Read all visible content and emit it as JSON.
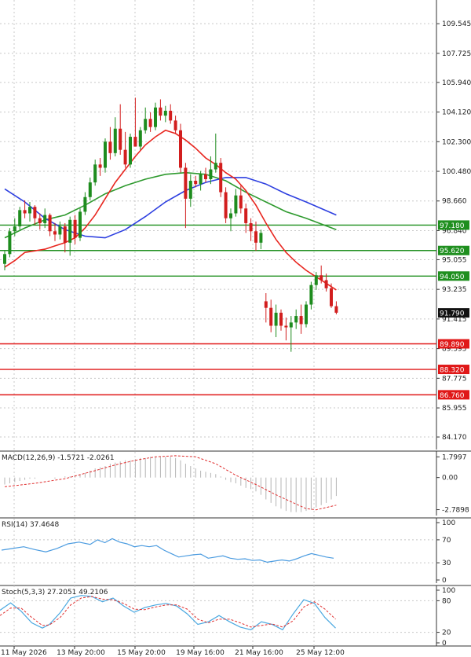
{
  "header_text": "",
  "colors": {
    "bull": "#1e8c1e",
    "bear": "#d21e1e",
    "ma_red": "#e8261f",
    "ma_green": "#2e9a2e",
    "ma_blue": "#2d3fe0",
    "level_green": "#1f8f1f",
    "level_red": "#e01818",
    "grid": "#c8c8c8",
    "macd_hist": "#b4b4b4",
    "macd_signal": "#e03030",
    "rsi_line": "#4a9be0",
    "stoch_main": "#4aa8e0",
    "stoch_signal": "#e03030"
  },
  "chart_data": {
    "type": "candlestick",
    "title": "",
    "ylim": [
      83.4,
      111.0
    ],
    "y_ticks": [
      "109.545",
      "107.725",
      "105.940",
      "104.120",
      "102.300",
      "100.480",
      "98.660",
      "96.840",
      "95.055",
      "93.235",
      "91.415",
      "89.595",
      "87.775",
      "85.955",
      "84.170"
    ],
    "x_tick_labels": [
      "11 May 2026",
      "13 May 20:00",
      "15 May 20:00",
      "19 May 16:00",
      "21 May 16:00",
      "25 May 12:00"
    ],
    "current_price": "91.790",
    "levels": [
      {
        "label": "97.180",
        "value": 97.18,
        "kind": "green"
      },
      {
        "label": "95.620",
        "value": 95.62,
        "kind": "green"
      },
      {
        "label": "94.050",
        "value": 94.05,
        "kind": "green"
      },
      {
        "label": "89.890",
        "value": 89.89,
        "kind": "red"
      },
      {
        "label": "88.320",
        "value": 88.32,
        "kind": "red"
      },
      {
        "label": "86.760",
        "value": 86.76,
        "kind": "red"
      }
    ],
    "candles": [
      [
        94.8,
        95.6,
        94.4,
        95.4
      ],
      [
        95.4,
        97.0,
        95.2,
        96.8
      ],
      [
        96.8,
        97.6,
        96.5,
        97.1
      ],
      [
        97.1,
        98.3,
        96.9,
        98.1
      ],
      [
        98.1,
        98.7,
        97.6,
        97.9
      ],
      [
        97.9,
        98.6,
        97.4,
        98.3
      ],
      [
        98.3,
        98.4,
        97.2,
        97.6
      ],
      [
        97.6,
        97.9,
        96.9,
        97.3
      ],
      [
        97.3,
        98.2,
        97.0,
        97.8
      ],
      [
        97.8,
        97.9,
        96.5,
        96.8
      ],
      [
        96.8,
        97.3,
        96.2,
        96.6
      ],
      [
        96.6,
        97.4,
        96.3,
        97.1
      ],
      [
        97.1,
        97.3,
        95.5,
        96.1
      ],
      [
        96.1,
        97.7,
        95.3,
        97.5
      ],
      [
        97.5,
        97.8,
        96.0,
        96.4
      ],
      [
        96.4,
        98.2,
        96.2,
        98.0
      ],
      [
        98.0,
        99.2,
        97.8,
        98.9
      ],
      [
        98.9,
        100.1,
        98.7,
        99.8
      ],
      [
        99.8,
        101.2,
        99.6,
        100.9
      ],
      [
        100.9,
        101.3,
        100.2,
        100.7
      ],
      [
        100.7,
        102.5,
        100.4,
        102.3
      ],
      [
        102.3,
        103.2,
        101.2,
        101.6
      ],
      [
        101.6,
        103.8,
        101.4,
        103.1
      ],
      [
        103.1,
        104.6,
        101.5,
        101.8
      ],
      [
        101.8,
        102.9,
        100.7,
        100.9
      ],
      [
        100.9,
        102.8,
        100.7,
        102.6
      ],
      [
        102.6,
        105.0,
        102.1,
        102.0
      ],
      [
        102.0,
        103.2,
        101.8,
        103.0
      ],
      [
        103.0,
        104.4,
        102.8,
        103.7
      ],
      [
        103.7,
        104.1,
        102.9,
        103.2
      ],
      [
        103.2,
        104.7,
        103.0,
        104.4
      ],
      [
        104.4,
        104.9,
        103.6,
        103.9
      ],
      [
        103.9,
        104.5,
        103.5,
        104.2
      ],
      [
        104.2,
        104.6,
        103.4,
        103.6
      ],
      [
        103.6,
        103.9,
        102.8,
        103.0
      ],
      [
        103.0,
        103.4,
        100.4,
        100.7
      ],
      [
        100.7,
        101.0,
        97.0,
        98.8
      ],
      [
        98.8,
        100.3,
        98.3,
        99.9
      ],
      [
        99.9,
        100.2,
        99.5,
        99.7
      ],
      [
        99.7,
        100.5,
        99.3,
        100.3
      ],
      [
        100.3,
        100.7,
        99.8,
        100.0
      ],
      [
        100.0,
        101.4,
        99.7,
        100.6
      ],
      [
        100.6,
        102.8,
        100.4,
        101.0
      ],
      [
        101.0,
        101.3,
        98.9,
        99.2
      ],
      [
        99.2,
        99.5,
        97.3,
        97.6
      ],
      [
        97.6,
        98.2,
        96.8,
        97.9
      ],
      [
        97.9,
        99.4,
        97.7,
        99.0
      ],
      [
        99.0,
        99.6,
        97.9,
        98.2
      ],
      [
        98.2,
        98.5,
        96.7,
        97.3
      ],
      [
        97.3,
        97.6,
        96.2,
        96.8
      ],
      [
        96.8,
        97.4,
        95.6,
        96.1
      ],
      [
        96.1,
        96.9,
        95.7,
        96.7
      ],
      [
        92.5,
        93.0,
        91.2,
        92.1
      ],
      [
        92.1,
        92.6,
        90.6,
        91.0
      ],
      [
        91.0,
        92.3,
        90.3,
        91.8
      ],
      [
        91.8,
        92.0,
        90.7,
        91.0
      ],
      [
        91.0,
        91.5,
        90.1,
        90.9
      ],
      [
        90.9,
        91.6,
        89.4,
        91.2
      ],
      [
        91.2,
        92.0,
        90.8,
        91.6
      ],
      [
        91.6,
        92.3,
        90.5,
        91.1
      ],
      [
        91.1,
        92.5,
        90.9,
        92.3
      ],
      [
        92.3,
        93.7,
        92.0,
        93.5
      ],
      [
        93.5,
        94.3,
        93.2,
        94.1
      ],
      [
        94.1,
        94.7,
        93.6,
        93.8
      ],
      [
        93.8,
        94.2,
        93.1,
        93.3
      ],
      [
        93.3,
        93.6,
        92.1,
        92.2
      ],
      [
        92.2,
        92.5,
        91.7,
        91.8
      ]
    ],
    "ma_red": [
      [
        0,
        94.6
      ],
      [
        2,
        95.0
      ],
      [
        4,
        95.5
      ],
      [
        6,
        95.6
      ],
      [
        8,
        95.7
      ],
      [
        10,
        95.9
      ],
      [
        12,
        96.1
      ],
      [
        14,
        96.4
      ],
      [
        16,
        97.0
      ],
      [
        18,
        97.8
      ],
      [
        20,
        98.8
      ],
      [
        22,
        99.8
      ],
      [
        24,
        100.6
      ],
      [
        26,
        101.4
      ],
      [
        28,
        102.1
      ],
      [
        30,
        102.6
      ],
      [
        32,
        103.0
      ],
      [
        34,
        102.8
      ],
      [
        36,
        102.4
      ],
      [
        38,
        101.9
      ],
      [
        40,
        101.3
      ],
      [
        42,
        100.9
      ],
      [
        44,
        100.4
      ],
      [
        46,
        100.0
      ],
      [
        48,
        99.3
      ],
      [
        50,
        98.4
      ],
      [
        52,
        97.3
      ],
      [
        54,
        96.3
      ],
      [
        56,
        95.5
      ],
      [
        58,
        94.9
      ],
      [
        60,
        94.4
      ],
      [
        62,
        94.0
      ],
      [
        64,
        93.6
      ],
      [
        66,
        93.2
      ]
    ],
    "ma_green": [
      [
        0,
        96.4
      ],
      [
        4,
        97.0
      ],
      [
        8,
        97.5
      ],
      [
        12,
        97.8
      ],
      [
        16,
        98.4
      ],
      [
        20,
        99.1
      ],
      [
        24,
        99.6
      ],
      [
        28,
        100.0
      ],
      [
        32,
        100.3
      ],
      [
        36,
        100.4
      ],
      [
        40,
        100.3
      ],
      [
        44,
        99.9
      ],
      [
        48,
        99.2
      ],
      [
        52,
        98.6
      ],
      [
        56,
        98.0
      ],
      [
        60,
        97.6
      ],
      [
        66,
        96.9
      ]
    ],
    "ma_blue": [
      [
        0,
        99.4
      ],
      [
        4,
        98.6
      ],
      [
        8,
        97.6
      ],
      [
        12,
        96.9
      ],
      [
        16,
        96.5
      ],
      [
        20,
        96.4
      ],
      [
        24,
        96.9
      ],
      [
        28,
        97.7
      ],
      [
        32,
        98.6
      ],
      [
        36,
        99.3
      ],
      [
        40,
        99.8
      ],
      [
        44,
        100.1
      ],
      [
        48,
        100.1
      ],
      [
        52,
        99.7
      ],
      [
        56,
        99.1
      ],
      [
        60,
        98.6
      ],
      [
        66,
        97.8
      ]
    ],
    "macd": {
      "label": "MACD(12,26,9) -1.5721 -2.0261",
      "y_ticks": [
        "1.7997",
        "0.00",
        "-2.7898"
      ],
      "ylim": [
        -3.3,
        2.3
      ],
      "hist": [
        -0.6,
        -0.5,
        -0.4,
        -0.3,
        -0.2,
        -0.1,
        -0.1,
        0.0,
        0.0,
        0.0,
        -0.1,
        0.0,
        0.1,
        0.1,
        0.2,
        0.3,
        0.4,
        0.6,
        0.8,
        0.9,
        1.0,
        1.2,
        1.3,
        1.4,
        1.5,
        1.5,
        1.6,
        1.7,
        1.7,
        1.8,
        1.8,
        1.8,
        1.8,
        1.8,
        1.7,
        1.5,
        1.2,
        1.0,
        0.8,
        0.6,
        0.5,
        0.4,
        0.3,
        0.1,
        -0.2,
        -0.4,
        -0.5,
        -0.7,
        -0.9,
        -1.0,
        -1.2,
        -1.5,
        -1.9,
        -2.2,
        -2.5,
        -2.7,
        -2.9,
        -3.0,
        -3.0,
        -3.0,
        -2.9,
        -2.8,
        -2.6,
        -2.4,
        -2.2,
        -1.9,
        -1.6
      ],
      "signal": [
        [
          0,
          -0.8
        ],
        [
          6,
          -0.5
        ],
        [
          12,
          -0.1
        ],
        [
          18,
          0.6
        ],
        [
          22,
          1.1
        ],
        [
          26,
          1.5
        ],
        [
          30,
          1.8
        ],
        [
          34,
          1.9
        ],
        [
          38,
          1.8
        ],
        [
          42,
          1.2
        ],
        [
          46,
          0.2
        ],
        [
          50,
          -0.6
        ],
        [
          54,
          -1.5
        ],
        [
          58,
          -2.3
        ],
        [
          60,
          -2.7
        ],
        [
          62,
          -2.8
        ],
        [
          64,
          -2.6
        ],
        [
          66,
          -2.4
        ]
      ]
    },
    "rsi": {
      "label": "RSI(14) 37.4648",
      "y_ticks": [
        "100",
        "70",
        "30",
        "0"
      ],
      "ylim": [
        0,
        100
      ],
      "values": [
        [
          0,
          52
        ],
        [
          3,
          55
        ],
        [
          6,
          58
        ],
        [
          9,
          53
        ],
        [
          12,
          49
        ],
        [
          15,
          55
        ],
        [
          18,
          63
        ],
        [
          21,
          66
        ],
        [
          24,
          62
        ],
        [
          26,
          70
        ],
        [
          28,
          65
        ],
        [
          30,
          72
        ],
        [
          32,
          66
        ],
        [
          34,
          63
        ],
        [
          36,
          58
        ],
        [
          38,
          60
        ],
        [
          40,
          58
        ],
        [
          42,
          60
        ],
        [
          44,
          52
        ],
        [
          46,
          46
        ],
        [
          48,
          40
        ],
        [
          50,
          42
        ],
        [
          52,
          44
        ],
        [
          54,
          45
        ],
        [
          56,
          38
        ],
        [
          58,
          40
        ],
        [
          60,
          42
        ],
        [
          62,
          38
        ],
        [
          64,
          36
        ],
        [
          66,
          37
        ],
        [
          68,
          34
        ],
        [
          70,
          35
        ],
        [
          72,
          31
        ],
        [
          74,
          33
        ],
        [
          76,
          35
        ],
        [
          78,
          33
        ],
        [
          80,
          37
        ],
        [
          82,
          42
        ],
        [
          84,
          46
        ],
        [
          86,
          43
        ],
        [
          88,
          40
        ],
        [
          90,
          38
        ]
      ]
    },
    "stoch": {
      "label": "Stoch(5,3,3) 27.2051 49.2106",
      "y_ticks": [
        "100",
        "80",
        "20",
        "0"
      ],
      "ylim": [
        0,
        100
      ],
      "main": [
        [
          0,
          62
        ],
        [
          3,
          76
        ],
        [
          6,
          60
        ],
        [
          9,
          38
        ],
        [
          12,
          28
        ],
        [
          14,
          35
        ],
        [
          17,
          57
        ],
        [
          20,
          85
        ],
        [
          23,
          90
        ],
        [
          26,
          88
        ],
        [
          29,
          78
        ],
        [
          32,
          85
        ],
        [
          35,
          70
        ],
        [
          38,
          58
        ],
        [
          41,
          67
        ],
        [
          44,
          72
        ],
        [
          47,
          75
        ],
        [
          50,
          70
        ],
        [
          53,
          55
        ],
        [
          56,
          35
        ],
        [
          59,
          40
        ],
        [
          62,
          52
        ],
        [
          65,
          40
        ],
        [
          68,
          30
        ],
        [
          71,
          25
        ],
        [
          74,
          40
        ],
        [
          77,
          35
        ],
        [
          80,
          25
        ],
        [
          83,
          55
        ],
        [
          86,
          82
        ],
        [
          89,
          75
        ],
        [
          92,
          48
        ],
        [
          95,
          28
        ]
      ],
      "signal": [
        [
          0,
          52
        ],
        [
          3,
          66
        ],
        [
          6,
          66
        ],
        [
          9,
          48
        ],
        [
          12,
          33
        ],
        [
          14,
          34
        ],
        [
          17,
          48
        ],
        [
          20,
          72
        ],
        [
          23,
          85
        ],
        [
          26,
          88
        ],
        [
          29,
          83
        ],
        [
          32,
          82
        ],
        [
          35,
          75
        ],
        [
          38,
          64
        ],
        [
          41,
          63
        ],
        [
          44,
          68
        ],
        [
          47,
          72
        ],
        [
          50,
          72
        ],
        [
          53,
          64
        ],
        [
          56,
          45
        ],
        [
          59,
          38
        ],
        [
          62,
          45
        ],
        [
          65,
          45
        ],
        [
          68,
          38
        ],
        [
          71,
          30
        ],
        [
          74,
          33
        ],
        [
          77,
          36
        ],
        [
          80,
          30
        ],
        [
          83,
          42
        ],
        [
          86,
          68
        ],
        [
          89,
          78
        ],
        [
          92,
          64
        ],
        [
          95,
          45
        ]
      ]
    }
  }
}
